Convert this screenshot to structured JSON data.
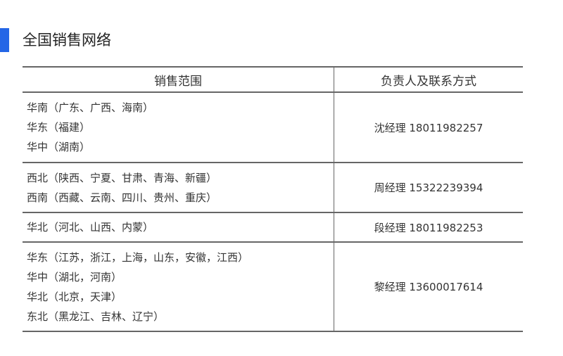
{
  "accent_color": "#2466e6",
  "title": "全国销售网络",
  "table": {
    "headers": [
      "销售范围",
      "负责人及联系方式"
    ],
    "rows": [
      {
        "regions": [
          "华南（广东、广西、海南）",
          "华东（福建）",
          "华中（湖南）"
        ],
        "contact": "沈经理  18011982257"
      },
      {
        "regions": [
          "西北（陕西、宁夏、甘肃、青海、新疆）",
          "西南（西藏、云南、四川、贵州、重庆）"
        ],
        "contact": "周经理  15322239394"
      },
      {
        "regions": [
          "华北（河北、山西、内蒙）"
        ],
        "contact": "段经理  18011982253"
      },
      {
        "regions": [
          "华东（江苏，浙江，上海，山东，安徽，江西）",
          "华中（湖北，河南）",
          "华北（北京，天津）",
          "东北（黑龙江、吉林、辽宁）"
        ],
        "contact": "黎经理  13600017614"
      }
    ]
  }
}
